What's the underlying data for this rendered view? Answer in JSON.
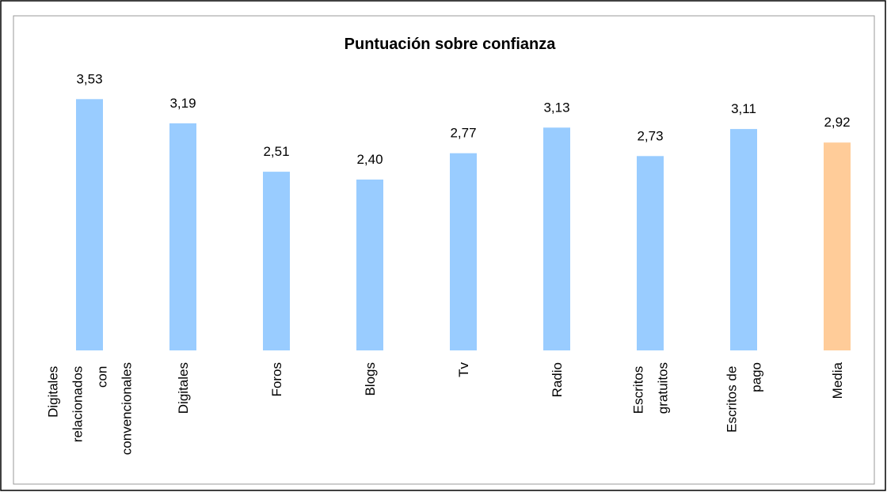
{
  "chart_data": {
    "type": "bar",
    "title": "Puntuación sobre confianza",
    "categories": [
      "Digitales relacionados con convencionales",
      "Digitales",
      "Foros",
      "Blogs",
      "Tv",
      "Radio",
      "Escritos gratuitos",
      "Escritos de pago",
      "Media"
    ],
    "values": [
      3.53,
      3.19,
      2.51,
      2.4,
      2.77,
      3.13,
      2.73,
      3.11,
      2.92
    ],
    "value_labels": [
      "3,53",
      "3,19",
      "2,51",
      "2,40",
      "2,77",
      "3,13",
      "2,73",
      "3,11",
      "2,92"
    ],
    "colors": [
      "#99ccff",
      "#99ccff",
      "#99ccff",
      "#99ccff",
      "#99ccff",
      "#99ccff",
      "#99ccff",
      "#99ccff",
      "#ffcc99"
    ]
  }
}
